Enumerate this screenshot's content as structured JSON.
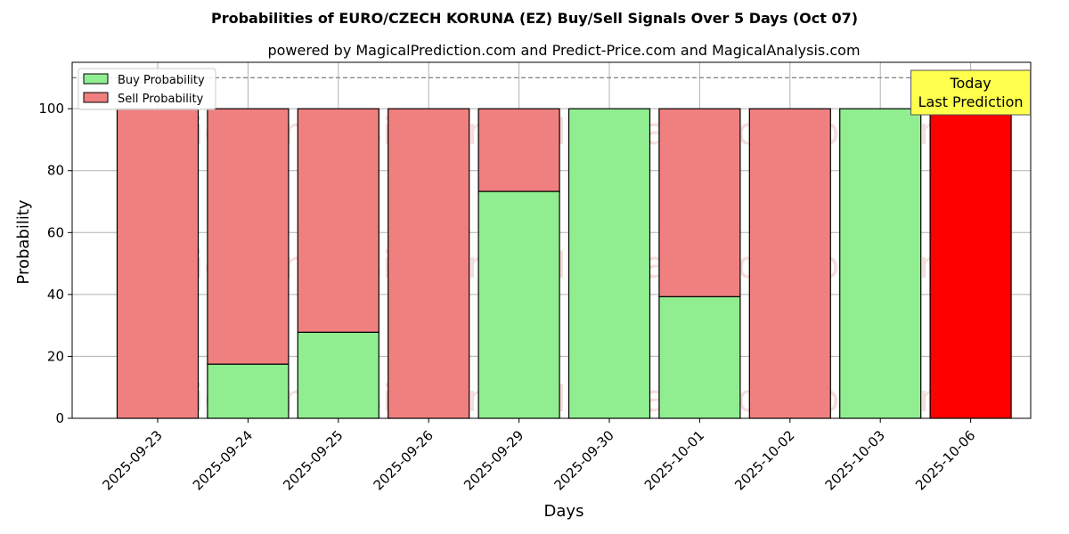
{
  "chart_data": {
    "type": "bar",
    "stacked": true,
    "title": "Probabilities of EURO/CZECH KORUNA (EZ) Buy/Sell Signals Over 5 Days (Oct 07)",
    "subtitle": "powered by MagicalPrediction.com and Predict-Price.com and MagicalAnalysis.com",
    "xlabel": "Days",
    "ylabel": "Probability",
    "ylim": [
      0,
      115
    ],
    "yticks": [
      0,
      20,
      40,
      60,
      80,
      100
    ],
    "grid": true,
    "legend_position": "top-left",
    "categories": [
      "2025-09-23",
      "2025-09-24",
      "2025-09-25",
      "2025-09-26",
      "2025-09-29",
      "2025-09-30",
      "2025-10-01",
      "2025-10-02",
      "2025-10-03",
      "2025-10-06"
    ],
    "series": [
      {
        "name": "Buy Probability",
        "color": "#90ee90",
        "values": [
          0,
          17.5,
          27.8,
          0,
          73.3,
          100,
          39.3,
          0,
          100,
          0
        ]
      },
      {
        "name": "Sell Probability",
        "color": "#f08080",
        "values": [
          100,
          82.5,
          72.2,
          100,
          26.7,
          0,
          60.7,
          100,
          0,
          100
        ]
      }
    ],
    "highlight": {
      "index": 9,
      "color": "#ff0000"
    },
    "reference_line": {
      "y": 110,
      "style": "dashed",
      "color": "#808080"
    },
    "annotation": {
      "lines": [
        "Today",
        "Last Prediction"
      ],
      "background": "#ffff4d"
    },
    "watermarks": [
      "MagicalAnalysis.com",
      "MagicalPrediction.com"
    ]
  }
}
